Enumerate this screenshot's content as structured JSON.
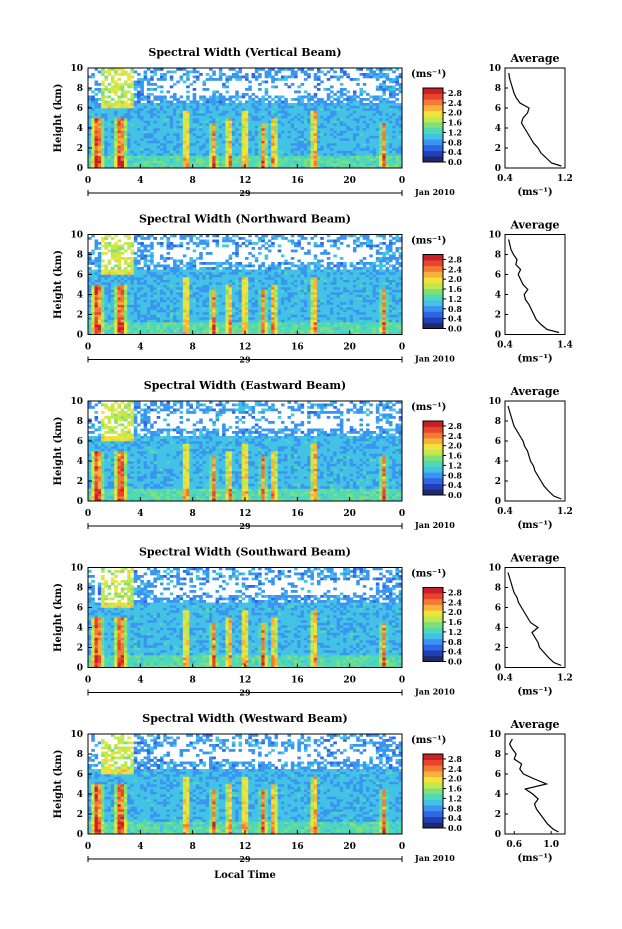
{
  "figure": {
    "date_label": "Jan 2010",
    "day_label": "29",
    "xlabel": "Local Time",
    "ylabel": "Height (km)",
    "colorbar_unit": "(ms⁻¹)",
    "average_title": "Average",
    "average_xlabel": "(ms⁻¹)"
  },
  "colorbar_ticks": [
    "0.0",
    "0.4",
    "0.8",
    "1.2",
    "1.6",
    "2.0",
    "2.4",
    "2.8"
  ],
  "colorbar_colors": [
    "#1f2a6e",
    "#2140b8",
    "#2f66e6",
    "#3a95f0",
    "#43c2e6",
    "#4fd9b6",
    "#7fe07a",
    "#c2e84d",
    "#f2e23c",
    "#f8b13a",
    "#f27a34",
    "#e8442e",
    "#c91f26"
  ],
  "chart_data": [
    {
      "type": "heatmap",
      "title": "Spectral Width (Vertical Beam)",
      "x_ticks": [
        "0",
        "4",
        "8",
        "12",
        "16",
        "20",
        "0"
      ],
      "y_ticks": [
        "0",
        "2",
        "4",
        "6",
        "8",
        "10"
      ],
      "xlim": [
        0,
        24
      ],
      "ylim": [
        0,
        10
      ],
      "colorbar_range": [
        0.0,
        3.0
      ],
      "average": {
        "type": "line",
        "title": "Average",
        "x_ticks": [
          "0.4",
          "1.2"
        ],
        "xlim": [
          0.4,
          1.2
        ],
        "y_ticks": [
          "0",
          "2",
          "4",
          "6",
          "8",
          "10"
        ],
        "ylim": [
          0,
          10
        ],
        "height": [
          0.2,
          0.5,
          1.0,
          1.5,
          2.0,
          2.5,
          3.0,
          3.5,
          4.0,
          4.5,
          5.0,
          5.5,
          6.0,
          6.5,
          7.0,
          7.5,
          8.0,
          8.5,
          9.0,
          9.5
        ],
        "values": [
          1.15,
          1.02,
          0.95,
          0.88,
          0.84,
          0.78,
          0.74,
          0.7,
          0.66,
          0.62,
          0.64,
          0.7,
          0.72,
          0.6,
          0.55,
          0.52,
          0.5,
          0.48,
          0.46,
          0.45
        ]
      }
    },
    {
      "type": "heatmap",
      "title": "Spectral Width (Northward Beam)",
      "x_ticks": [
        "0",
        "4",
        "8",
        "12",
        "16",
        "20",
        "0"
      ],
      "y_ticks": [
        "0",
        "2",
        "4",
        "6",
        "8",
        "10"
      ],
      "xlim": [
        0,
        24
      ],
      "ylim": [
        0,
        10
      ],
      "colorbar_range": [
        0.0,
        3.0
      ],
      "average": {
        "type": "line",
        "title": "Average",
        "x_ticks": [
          "0.4",
          "1.4"
        ],
        "xlim": [
          0.4,
          1.4
        ],
        "y_ticks": [
          "0",
          "2",
          "4",
          "6",
          "8",
          "10"
        ],
        "ylim": [
          0,
          10
        ],
        "height": [
          0.2,
          0.5,
          1.0,
          1.5,
          2.0,
          2.5,
          3.0,
          3.5,
          4.0,
          4.5,
          5.0,
          5.5,
          6.0,
          6.5,
          7.0,
          7.5,
          8.0,
          8.5,
          9.0,
          9.5
        ],
        "values": [
          1.3,
          1.1,
          1.0,
          0.92,
          0.88,
          0.84,
          0.8,
          0.74,
          0.72,
          0.78,
          0.7,
          0.66,
          0.62,
          0.66,
          0.58,
          0.6,
          0.54,
          0.5,
          0.48,
          0.46
        ]
      }
    },
    {
      "type": "heatmap",
      "title": "Spectral Width (Eastward Beam)",
      "x_ticks": [
        "0",
        "4",
        "8",
        "12",
        "16",
        "20",
        "0"
      ],
      "y_ticks": [
        "0",
        "2",
        "4",
        "6",
        "8",
        "10"
      ],
      "xlim": [
        0,
        24
      ],
      "ylim": [
        0,
        10
      ],
      "colorbar_range": [
        0.0,
        3.0
      ],
      "average": {
        "type": "line",
        "title": "Average",
        "x_ticks": [
          "0.4",
          "1.2"
        ],
        "xlim": [
          0.4,
          1.2
        ],
        "y_ticks": [
          "0",
          "2",
          "4",
          "6",
          "8",
          "10"
        ],
        "ylim": [
          0,
          10
        ],
        "height": [
          0.2,
          0.5,
          1.0,
          1.5,
          2.0,
          2.5,
          3.0,
          3.5,
          4.0,
          4.5,
          5.0,
          5.5,
          6.0,
          6.5,
          7.0,
          7.5,
          8.0,
          8.5,
          9.0,
          9.5
        ],
        "values": [
          1.15,
          1.05,
          0.98,
          0.92,
          0.88,
          0.84,
          0.8,
          0.78,
          0.74,
          0.72,
          0.7,
          0.66,
          0.64,
          0.6,
          0.56,
          0.52,
          0.5,
          0.48,
          0.46,
          0.44
        ]
      }
    },
    {
      "type": "heatmap",
      "title": "Spectral Width (Southward Beam)",
      "x_ticks": [
        "0",
        "4",
        "8",
        "12",
        "16",
        "20",
        "0"
      ],
      "y_ticks": [
        "0",
        "2",
        "4",
        "6",
        "8",
        "10"
      ],
      "xlim": [
        0,
        24
      ],
      "ylim": [
        0,
        10
      ],
      "colorbar_range": [
        0.0,
        3.0
      ],
      "average": {
        "type": "line",
        "title": "Average",
        "x_ticks": [
          "0.4",
          "1.2"
        ],
        "xlim": [
          0.4,
          1.2
        ],
        "y_ticks": [
          "0",
          "2",
          "4",
          "6",
          "8",
          "10"
        ],
        "ylim": [
          0,
          10
        ],
        "height": [
          0.2,
          0.5,
          1.0,
          1.5,
          2.0,
          2.5,
          3.0,
          3.5,
          4.0,
          4.5,
          5.0,
          5.5,
          6.0,
          6.5,
          7.0,
          7.5,
          8.0,
          8.5,
          9.0,
          9.5
        ],
        "values": [
          1.15,
          1.05,
          0.98,
          0.92,
          0.86,
          0.84,
          0.8,
          0.76,
          0.84,
          0.74,
          0.7,
          0.66,
          0.62,
          0.58,
          0.56,
          0.52,
          0.5,
          0.48,
          0.46,
          0.44
        ]
      }
    },
    {
      "type": "heatmap",
      "title": "Spectral Width (Westward Beam)",
      "x_ticks": [
        "0",
        "4",
        "8",
        "12",
        "16",
        "20",
        "0"
      ],
      "y_ticks": [
        "0",
        "2",
        "4",
        "6",
        "8",
        "10"
      ],
      "xlim": [
        0,
        24
      ],
      "ylim": [
        0,
        10
      ],
      "colorbar_range": [
        0.0,
        3.0
      ],
      "average": {
        "type": "line",
        "title": "Average",
        "x_ticks": [
          "0.6",
          "1.0"
        ],
        "xlim": [
          0.5,
          1.15
        ],
        "y_ticks": [
          "0",
          "2",
          "4",
          "6",
          "8",
          "10"
        ],
        "ylim": [
          0,
          10
        ],
        "height": [
          0.2,
          0.5,
          1.0,
          1.5,
          2.0,
          2.5,
          3.0,
          3.5,
          4.0,
          4.5,
          5.0,
          5.5,
          6.0,
          6.5,
          7.0,
          7.5,
          8.0,
          8.5,
          9.0,
          9.5
        ],
        "values": [
          1.08,
          1.02,
          0.96,
          0.92,
          0.88,
          0.84,
          0.82,
          0.86,
          0.8,
          0.72,
          0.95,
          0.82,
          0.7,
          0.66,
          0.68,
          0.6,
          0.62,
          0.58,
          0.55,
          0.58
        ]
      }
    }
  ]
}
